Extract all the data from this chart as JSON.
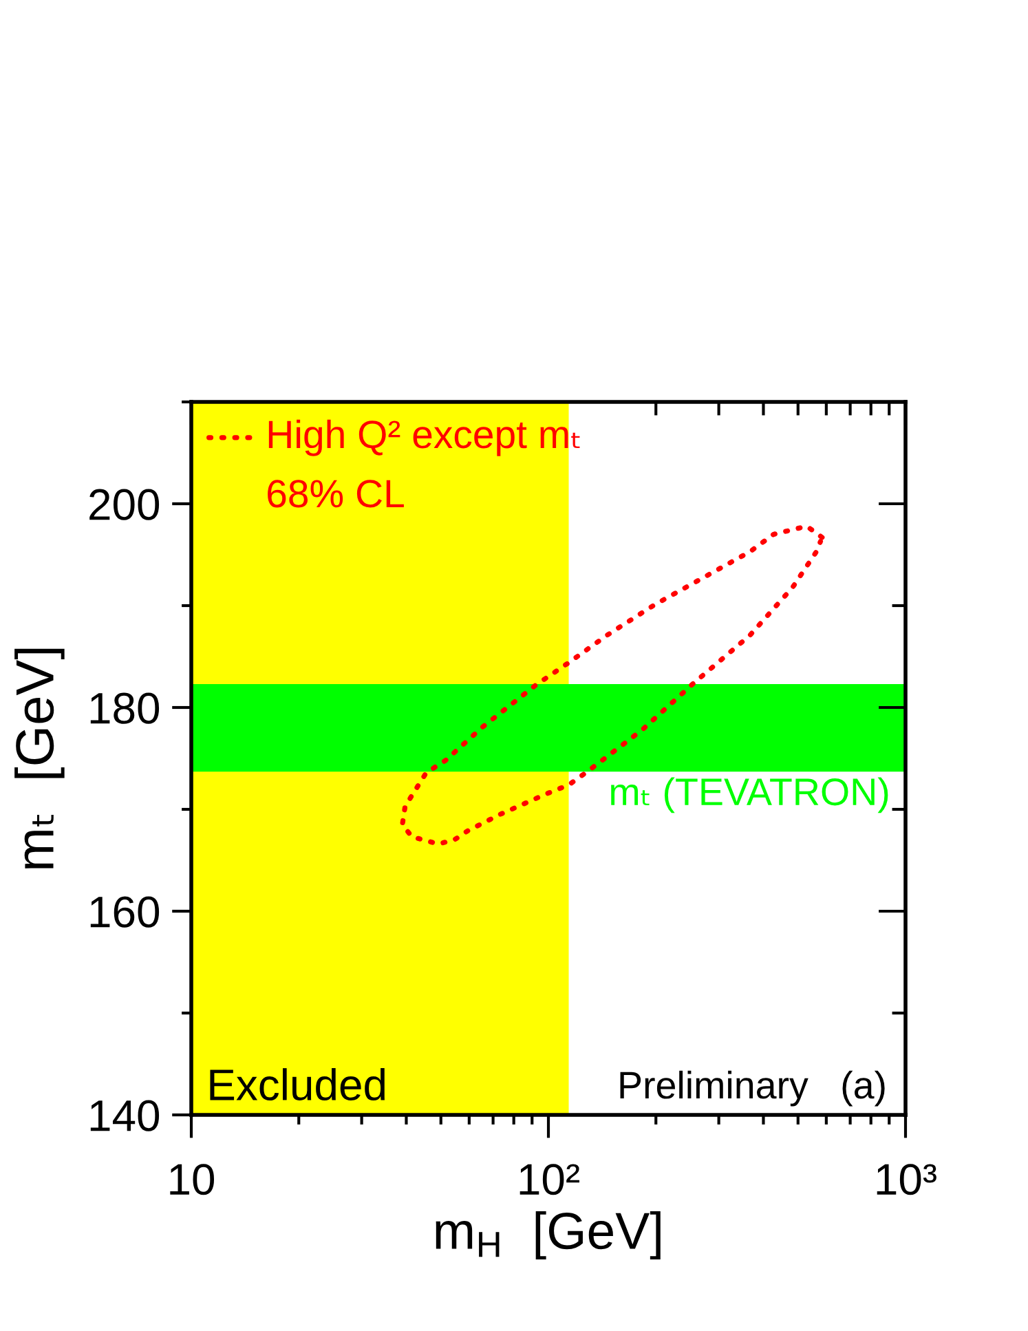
{
  "chart_data": {
    "type": "line",
    "xlabel": "m$_{H}$  [GeV]",
    "ylabel": "mₜ  [GeV]",
    "log": "x",
    "xlim": [
      10,
      1000
    ],
    "ylim": [
      140,
      210
    ],
    "xticks": [
      10,
      {
        "value": 20,
        "label": null
      },
      {
        "value": 30,
        "label": null
      },
      {
        "value": 40,
        "label": null
      },
      {
        "value": 50,
        "label": null
      },
      {
        "value": 60,
        "label": null
      },
      {
        "value": 70,
        "label": null
      },
      {
        "value": 80,
        "label": null
      },
      {
        "value": 90,
        "label": null
      },
      {
        "value": 100,
        "label": "10²"
      },
      {
        "value": 200,
        "label": null
      },
      {
        "value": 300,
        "label": null
      },
      {
        "value": 400,
        "label": null
      },
      {
        "value": 500,
        "label": null
      },
      {
        "value": 600,
        "label": null
      },
      {
        "value": 700,
        "label": null
      },
      {
        "value": 800,
        "label": null
      },
      {
        "value": 900,
        "label": null
      },
      {
        "value": 1000,
        "label": "10³"
      }
    ],
    "yticks": [
      140,
      {
        "value": 150,
        "label": null
      },
      160,
      {
        "value": 170,
        "label": null
      },
      180,
      {
        "value": 190,
        "label": null
      },
      200,
      {
        "value": 210,
        "label": null
      }
    ],
    "series": [
      {
        "name": "High Q² except mₜ\n68% CL",
        "color": "#ff0000",
        "line_style": "dotted",
        "x": [
          584,
          529,
          427,
          367,
          270,
          198.6,
          146,
          114,
          92.2,
          65.5,
          51.5,
          45.5,
          39.7,
          39.0,
          41.5,
          49.2,
          54.5,
          59.5,
          73.2,
          98.4,
          114,
          128.5,
          183,
          253.5,
          367,
          483,
          563,
          578
        ],
        "values": [
          196.7,
          197.8,
          197.0,
          195.3,
          192.7,
          190.1,
          187.1,
          184.4,
          182.2,
          178.1,
          174.8,
          173.6,
          170.3,
          168.5,
          167.3,
          166.6,
          167.0,
          167.9,
          169.5,
          171.5,
          172.4,
          173.7,
          177.8,
          182.3,
          187.1,
          191.8,
          195.3,
          196.3
        ]
      }
    ],
    "bands": [
      {
        "axis": "x",
        "from": 10,
        "to": 114,
        "label": "Excluded",
        "color": "#ffff00"
      },
      {
        "axis": "y",
        "from": 173.7,
        "to": 182.3,
        "label": "mₜ (TEVATRON)",
        "color": "#00ff00"
      }
    ],
    "annotations": [
      "Preliminary   (a)"
    ],
    "legend": "top left"
  }
}
